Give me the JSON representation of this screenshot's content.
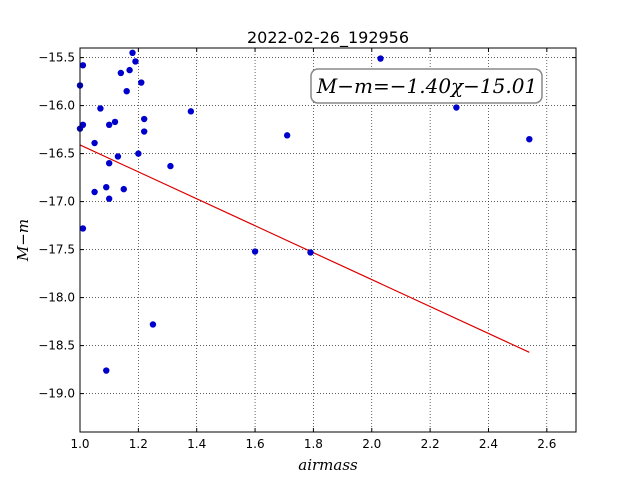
{
  "chart_data": {
    "type": "scatter",
    "title": "2022-02-26_192956",
    "xlabel": "airmass",
    "ylabel": "M−m",
    "xlim": [
      1.0,
      2.7
    ],
    "ylim": [
      -19.4,
      -15.4
    ],
    "ylim_note": "",
    "xticks": [
      1.0,
      1.2,
      1.4,
      1.6,
      1.8,
      2.0,
      2.2,
      2.4,
      2.6
    ],
    "yticks": [
      -15.5,
      -16.0,
      -16.5,
      -17.0,
      -17.5,
      -18.0,
      -18.5,
      -19.0
    ],
    "grid": true,
    "annotation": "M−m=−1.40χ−15.01",
    "colors": {
      "points": "#0000cc",
      "fit": "#dd0000"
    },
    "series": [
      {
        "kind": "points",
        "points": [
          [
            1.0,
            -15.79
          ],
          [
            1.0,
            -16.24
          ],
          [
            1.01,
            -15.58
          ],
          [
            1.01,
            -16.2
          ],
          [
            1.01,
            -17.28
          ],
          [
            1.05,
            -16.39
          ],
          [
            1.05,
            -16.9
          ],
          [
            1.07,
            -16.03
          ],
          [
            1.09,
            -16.85
          ],
          [
            1.09,
            -18.76
          ],
          [
            1.1,
            -16.6
          ],
          [
            1.1,
            -16.97
          ],
          [
            1.1,
            -16.2
          ],
          [
            1.12,
            -16.17
          ],
          [
            1.13,
            -16.53
          ],
          [
            1.14,
            -15.66
          ],
          [
            1.15,
            -16.87
          ],
          [
            1.16,
            -15.85
          ],
          [
            1.17,
            -15.63
          ],
          [
            1.18,
            -15.45
          ],
          [
            1.19,
            -15.54
          ],
          [
            1.2,
            -16.5
          ],
          [
            1.21,
            -15.76
          ],
          [
            1.22,
            -16.14
          ],
          [
            1.22,
            -16.27
          ],
          [
            1.25,
            -18.28
          ],
          [
            1.31,
            -16.63
          ],
          [
            1.38,
            -16.06
          ],
          [
            1.6,
            -17.52
          ],
          [
            1.71,
            -16.31
          ],
          [
            1.79,
            -17.53
          ],
          [
            2.03,
            -15.51
          ],
          [
            2.29,
            -16.02
          ],
          [
            2.54,
            -16.35
          ]
        ]
      },
      {
        "kind": "fit",
        "points": [
          [
            1.0,
            -16.41
          ],
          [
            2.54,
            -18.57
          ]
        ]
      }
    ]
  }
}
